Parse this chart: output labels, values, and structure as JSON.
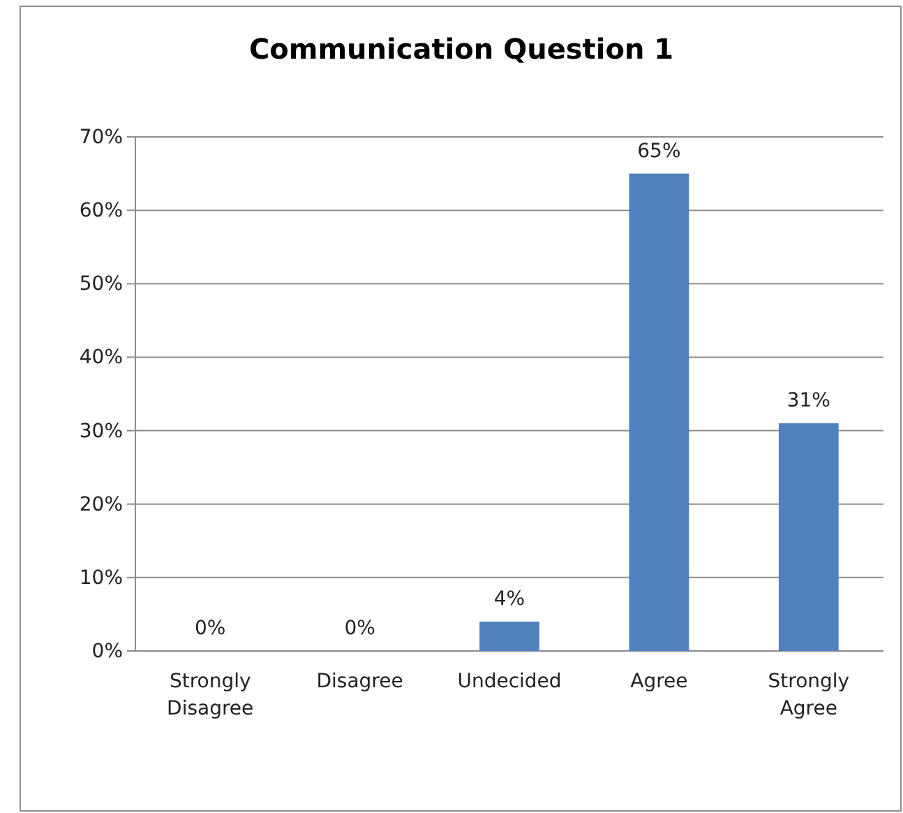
{
  "chart_data": {
    "type": "bar",
    "title": "Communication Question 1",
    "categories": [
      "Strongly Disagree",
      "Disagree",
      "Undecided",
      "Agree",
      "Strongly Agree"
    ],
    "values": [
      0,
      0,
      4,
      65,
      31
    ],
    "value_labels": [
      "0%",
      "0%",
      "4%",
      "65%",
      "31%"
    ],
    "color": "#4f81bd",
    "ylim": [
      0,
      70
    ],
    "yticks": [
      {
        "value": 0,
        "label": "0%"
      },
      {
        "value": 10,
        "label": "10%"
      },
      {
        "value": 20,
        "label": "20%"
      },
      {
        "value": 30,
        "label": "30%"
      },
      {
        "value": 40,
        "label": "40%"
      },
      {
        "value": 50,
        "label": "50%"
      },
      {
        "value": 60,
        "label": "60%"
      },
      {
        "value": 70,
        "label": "70%"
      }
    ],
    "grid": "y"
  }
}
